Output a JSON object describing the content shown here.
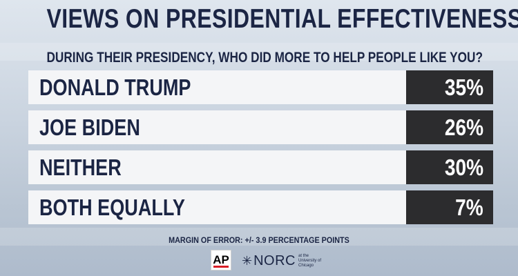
{
  "chart_data": {
    "type": "table",
    "title": "VIEWS ON PRESIDENTIAL EFFECTIVENESS",
    "subtitle": "DURING THEIR PRESIDENCY, WHO DID MORE TO HELP PEOPLE LIKE YOU?",
    "categories": [
      "DONALD TRUMP",
      "JOE BIDEN",
      "NEITHER",
      "BOTH EQUALLY"
    ],
    "values": [
      35,
      26,
      30,
      7
    ],
    "value_labels": [
      "35%",
      "26%",
      "30%",
      "7%"
    ],
    "unit": "%"
  },
  "footer": {
    "margin_of_error": "MARGIN OF ERROR: +/- 3.9 PERCENTAGE POINTS",
    "ap_logo": "AP",
    "norc_logo": "NORC",
    "norc_sub": "at the University of Chicago"
  },
  "colors": {
    "text": "#1b2544",
    "value_box": "#2c2c2e",
    "label_box": "#f4f5f7"
  }
}
